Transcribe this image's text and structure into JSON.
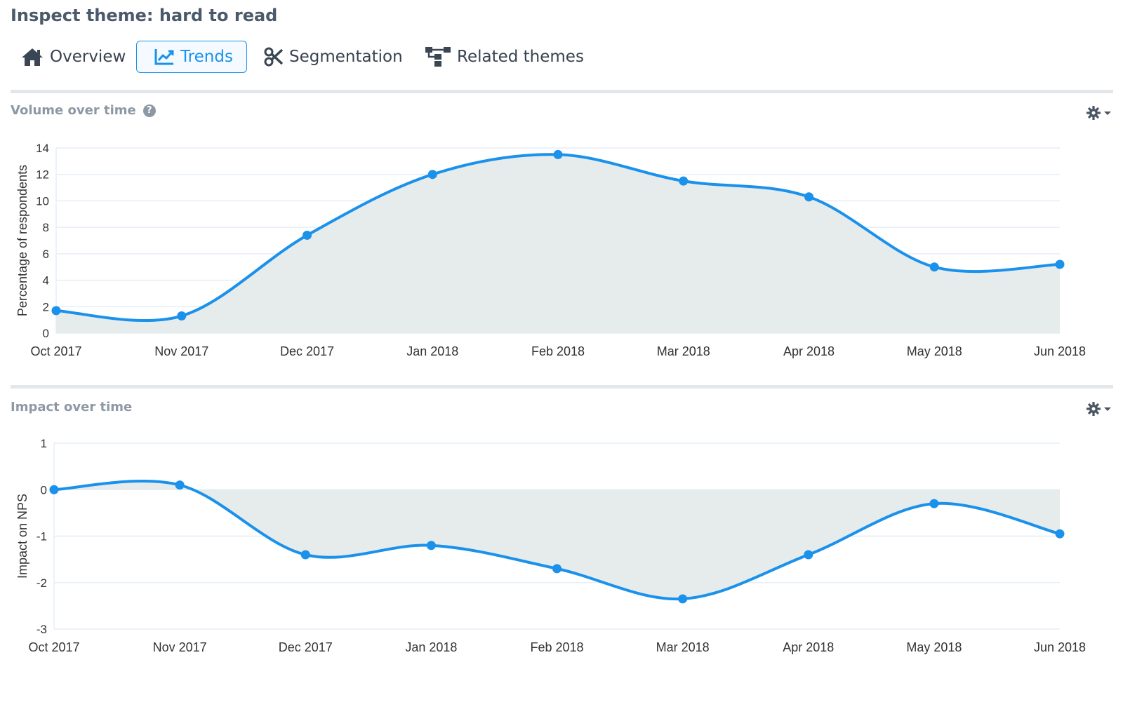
{
  "page": {
    "title": "Inspect theme: hard to read"
  },
  "tabs": [
    {
      "label": "Overview",
      "icon": "home-icon",
      "active": false
    },
    {
      "label": "Trends",
      "icon": "line-chart-icon",
      "active": true
    },
    {
      "label": "Segmentation",
      "icon": "scissors-icon",
      "active": false
    },
    {
      "label": "Related themes",
      "icon": "sitemap-icon",
      "active": false
    }
  ],
  "colors": {
    "accent": "#1a91eb",
    "area_fill": "#e6ebeb",
    "grid": "#e6eef7",
    "title_gray": "#8d98a4"
  },
  "sections": {
    "volume": {
      "title": "Volume over time",
      "help_icon": "question-circle-icon",
      "settings_icon": "gear-icon"
    },
    "impact": {
      "title": "Impact over time",
      "settings_icon": "gear-icon"
    }
  },
  "chart_data": [
    {
      "type": "area",
      "title": "Volume over time",
      "ylabel": "Percentage of respondents",
      "xlabel": "",
      "categories": [
        "Oct 2017",
        "Nov 2017",
        "Dec 2017",
        "Jan 2018",
        "Feb 2018",
        "Mar 2018",
        "Apr 2018",
        "May 2018",
        "Jun 2018"
      ],
      "values": [
        1.7,
        1.3,
        7.4,
        12.0,
        13.5,
        11.5,
        10.3,
        5.0,
        5.2
      ],
      "ylim": [
        0,
        14
      ],
      "yticks": [
        0,
        2,
        4,
        6,
        8,
        10,
        12,
        14
      ],
      "grid": true,
      "smooth": true,
      "legend": "none"
    },
    {
      "type": "area",
      "title": "Impact over time",
      "ylabel": "Impact on NPS",
      "xlabel": "",
      "categories": [
        "Oct 2017",
        "Nov 2017",
        "Dec 2017",
        "Jan 2018",
        "Feb 2018",
        "Mar 2018",
        "Apr 2018",
        "May 2018",
        "Jun 2018"
      ],
      "values": [
        0.0,
        0.1,
        -1.4,
        -1.2,
        -1.7,
        -2.35,
        -1.4,
        -0.3,
        -0.95
      ],
      "ylim": [
        -3,
        1
      ],
      "yticks": [
        -3,
        -2,
        -1,
        0,
        1
      ],
      "grid": true,
      "smooth": true,
      "legend": "none"
    }
  ]
}
